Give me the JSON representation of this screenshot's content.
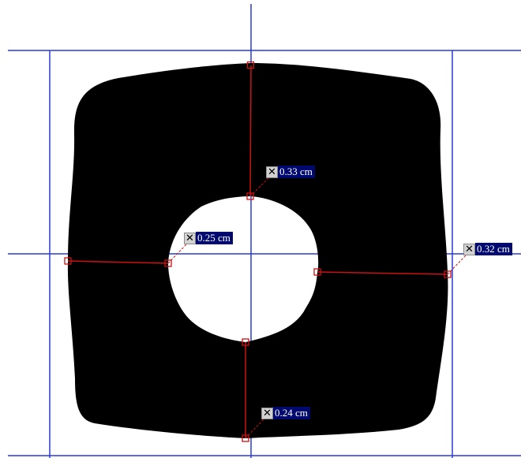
{
  "colors": {
    "guide": "#2a3bd6",
    "measure": "#cc1111",
    "shape": "#000000",
    "label_bg": "#000a6e",
    "label_text": "#ffffff"
  },
  "measurements": [
    {
      "id": "top",
      "label": "0.33 cm",
      "remove_icon": "close-icon"
    },
    {
      "id": "left",
      "label": "0.25 cm",
      "remove_icon": "close-icon"
    },
    {
      "id": "right",
      "label": "0.32 cm",
      "remove_icon": "close-icon"
    },
    {
      "id": "bottom",
      "label": "0.24 cm",
      "remove_icon": "close-icon"
    }
  ]
}
